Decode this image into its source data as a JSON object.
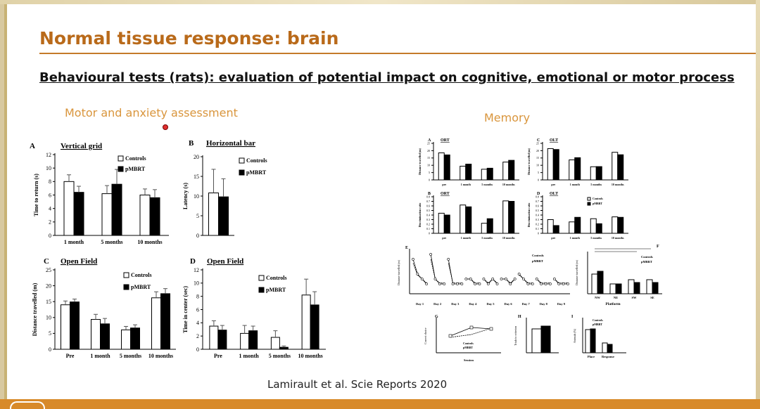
{
  "slide": {
    "title": "Normal tissue response: brain",
    "subtitle": "Behavioural tests (rats): evaluation of potential impact on cognitive, emotional or motor process",
    "left_heading": "Motor and anxiety assessment",
    "right_heading": "Memory",
    "citation": "Lamirault et al. Scie Reports 2020"
  },
  "colors": {
    "title": "#b96a1a",
    "heading": "#d9953c",
    "bottom_bar": "#d88a2a",
    "controls_bar": "#ffffff",
    "pmbrt_bar": "#000000"
  },
  "chart_data": [
    {
      "id": "A",
      "type": "bar",
      "title": "Vertical grid",
      "ylabel": "Time to return (s)",
      "ylim": [
        0,
        12
      ],
      "yticks": [
        0,
        2,
        4,
        6,
        8,
        10,
        12
      ],
      "categories": [
        "1 month",
        "5 months",
        "10 months"
      ],
      "series": [
        {
          "name": "Controls",
          "values": [
            8.0,
            6.2,
            6.0
          ],
          "errors": [
            1.0,
            1.2,
            0.9
          ]
        },
        {
          "name": "pMBRT",
          "values": [
            6.4,
            7.6,
            5.6
          ],
          "errors": [
            0.9,
            2.2,
            1.2
          ]
        }
      ],
      "legend": "top-right"
    },
    {
      "id": "B",
      "type": "bar",
      "title": "Horizontal bar",
      "ylabel": "Latency (s)",
      "ylim": [
        0,
        20
      ],
      "yticks": [
        0,
        5,
        10,
        15,
        20
      ],
      "categories": [
        ""
      ],
      "series": [
        {
          "name": "Controls",
          "values": [
            10.8
          ],
          "errors": [
            6.0
          ]
        },
        {
          "name": "pMBRT",
          "values": [
            9.8
          ],
          "errors": [
            4.6
          ]
        }
      ],
      "legend": "top-right"
    },
    {
      "id": "C",
      "type": "bar",
      "title": "Open Field",
      "ylabel": "Distance travelled (m)",
      "ylim": [
        0,
        25
      ],
      "yticks": [
        0,
        5,
        10,
        15,
        20,
        25
      ],
      "categories": [
        "Pre",
        "1 month",
        "5 months",
        "10 months"
      ],
      "series": [
        {
          "name": "Controls",
          "values": [
            14.0,
            9.4,
            6.1,
            16.2
          ],
          "errors": [
            1.2,
            1.6,
            1.1,
            1.9
          ]
        },
        {
          "name": "pMBRT",
          "values": [
            14.9,
            8.0,
            6.7,
            17.5
          ],
          "errors": [
            0.9,
            1.7,
            1.0,
            1.6
          ]
        }
      ],
      "legend": "top-right"
    },
    {
      "id": "D",
      "type": "bar",
      "title": "Open Field",
      "ylabel": "Time in center (sec)",
      "ylim": [
        0,
        12
      ],
      "yticks": [
        0,
        2,
        4,
        6,
        8,
        10,
        12
      ],
      "categories": [
        "Pre",
        "1 month",
        "5 months",
        "10 months"
      ],
      "series": [
        {
          "name": "Controls",
          "values": [
            3.5,
            2.4,
            1.8,
            8.2
          ],
          "errors": [
            0.8,
            1.2,
            1.0,
            2.4
          ]
        },
        {
          "name": "pMBRT",
          "values": [
            2.9,
            2.8,
            0.3,
            6.7
          ],
          "errors": [
            0.7,
            0.7,
            0.2,
            2.0
          ]
        }
      ],
      "legend": "top-right"
    }
  ],
  "memory_panels": [
    {
      "id": "A",
      "title": "ORT",
      "ylabel": "Distance travelled (m)",
      "ylim": [
        0,
        25
      ],
      "yticks": [
        0,
        5,
        10,
        15,
        20,
        25
      ],
      "categories": [
        "pre",
        "1 month",
        "5 months",
        "10 months"
      ],
      "series": [
        {
          "values": [
            18.5,
            9.4,
            7.3,
            12.2
          ]
        },
        {
          "values": [
            17.1,
            10.8,
            8.0,
            13.4
          ]
        }
      ]
    },
    {
      "id": "C",
      "title": "OLT",
      "ylabel": "Distance travelled (m)",
      "ylim": [
        0,
        25
      ],
      "yticks": [
        0,
        5,
        10,
        15,
        20,
        25
      ],
      "categories": [
        "pre",
        "1 month",
        "5 months",
        "10 months"
      ],
      "series": [
        {
          "values": [
            21.4,
            13.7,
            9.0,
            18.9
          ]
        },
        {
          "values": [
            20.8,
            15.2,
            9.1,
            17.2
          ]
        }
      ]
    },
    {
      "id": "B",
      "title": "ORT",
      "ylabel": "Discrimination ratio",
      "ylim": [
        0,
        0.8
      ],
      "yticks": [
        0,
        0.1,
        0.2,
        0.3,
        0.4,
        0.5,
        0.6,
        0.7,
        0.8
      ],
      "categories": [
        "pre",
        "1 month",
        "5 months",
        "10 months"
      ],
      "series": [
        {
          "values": [
            0.44,
            0.62,
            0.22,
            0.71
          ]
        },
        {
          "values": [
            0.4,
            0.58,
            0.32,
            0.7
          ]
        }
      ]
    },
    {
      "id": "D",
      "title": "OLT",
      "ylabel": "Discrimination ratio",
      "ylim": [
        0,
        0.8
      ],
      "yticks": [
        0,
        0.1,
        0.2,
        0.3,
        0.4,
        0.5,
        0.6,
        0.7,
        0.8
      ],
      "categories": [
        "pre",
        "1 month",
        "5 months",
        "10 months"
      ],
      "series": [
        {
          "values": [
            0.3,
            0.25,
            0.32,
            0.36
          ]
        },
        {
          "values": [
            0.17,
            0.35,
            0.21,
            0.35
          ]
        }
      ],
      "legend": [
        "Controls",
        "pMBRT"
      ]
    }
  ],
  "memory_extra": {
    "e_label": "E",
    "e_ylabel": "Distance travelled (m)",
    "e_legend": [
      "Controls",
      "pMBRT"
    ],
    "e_days": [
      "Day 1",
      "Day 2",
      "Day 3",
      "Day 4",
      "Day 5",
      "Day 6",
      "Day 7",
      "Day 8",
      "Day 9"
    ],
    "f_label": "F",
    "f_ylabel": "Distance travelled (m)",
    "f_xlabel": "Platform",
    "f_categories": [
      "NW",
      "NE",
      "SW",
      "SE"
    ],
    "f_legend": [
      "Controls",
      "pMBRT"
    ],
    "g_label": "G",
    "g_ylabel": "Correct choice",
    "g_xlabel": "Session",
    "g_legend": [
      "Controls",
      "pMBRT"
    ],
    "h_label": "H",
    "h_ylabel": "Trials to criterion",
    "i_label": "I",
    "i_ylabel": "Animals (%)",
    "i_categories": [
      "Place",
      "Response"
    ],
    "i_legend": [
      "Controls",
      "pMBRT"
    ]
  }
}
